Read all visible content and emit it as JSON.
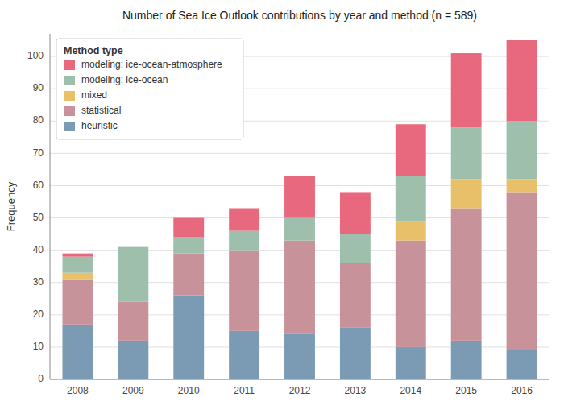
{
  "chart_data": {
    "type": "bar",
    "stacked": true,
    "title": "Number of Sea Ice Outlook contributions by year and method (n = 589)",
    "y_label": "Frequency",
    "legend_title": "Method type",
    "categories": [
      "2008",
      "2009",
      "2010",
      "2011",
      "2012",
      "2013",
      "2014",
      "2015",
      "2016"
    ],
    "series": [
      {
        "name": "heuristic",
        "color": "#7b9bb5",
        "values": [
          17,
          12,
          26,
          15,
          14,
          16,
          10,
          12,
          9
        ]
      },
      {
        "name": "statistical",
        "color": "#c8929a",
        "values": [
          14,
          12,
          13,
          25,
          29,
          20,
          33,
          41,
          49
        ]
      },
      {
        "name": "mixed",
        "color": "#e8c06a",
        "values": [
          2,
          0,
          0,
          0,
          0,
          0,
          6,
          9,
          4
        ]
      },
      {
        "name": "modeling: ice-ocean",
        "color": "#9dbfab",
        "values": [
          5,
          17,
          5,
          6,
          7,
          9,
          14,
          16,
          18
        ]
      },
      {
        "name": "modeling: ice-ocean-atmosphere",
        "color": "#e8697d",
        "values": [
          1,
          0,
          6,
          7,
          13,
          13,
          16,
          23,
          25
        ]
      }
    ],
    "ylim": [
      0,
      107
    ],
    "yticks": [
      0,
      10,
      20,
      30,
      40,
      50,
      60,
      70,
      80,
      90,
      100
    ],
    "grid": true,
    "legend": "upper left"
  }
}
